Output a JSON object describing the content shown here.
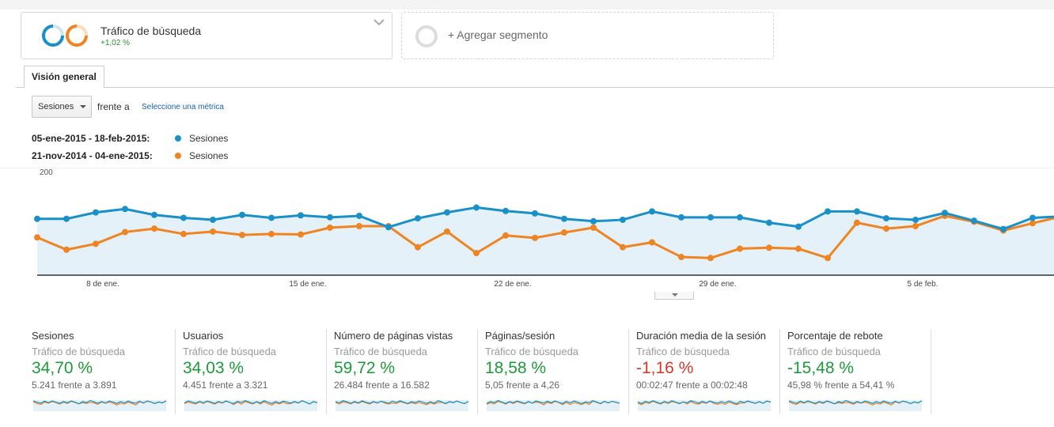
{
  "segments": {
    "active": {
      "title": "Tráfico de búsqueda",
      "delta": "+1,02 %",
      "ring_colors": [
        "#1a90c8",
        "#ef8422"
      ]
    },
    "add_label": "+ Agregar segmento"
  },
  "tabs": [
    {
      "label": "Visión general",
      "selected": true
    }
  ],
  "metric_picker": {
    "selected": "Sesiones",
    "versus_label": "frente a",
    "select_metric_link": "Seleccione una métrica"
  },
  "legend": [
    {
      "range": "05-ene-2015 - 18-feb-2015:",
      "series": "Sesiones",
      "color": "#1a90c8"
    },
    {
      "range": "21-nov-2014 - 04-ene-2015:",
      "series": "Sesiones",
      "color": "#ef8422"
    }
  ],
  "chart_data": {
    "type": "line",
    "y_ticks": [
      "200",
      "100"
    ],
    "ylim": [
      0,
      200
    ],
    "x_tick_labels": [
      "8 de ene.",
      "15 de ene.",
      "22 de ene.",
      "29 de ene.",
      "5 de feb."
    ],
    "series": [
      {
        "name": "Sesiones",
        "range": "05-ene-2015 - 18-feb-2015",
        "color": "#1a90c8",
        "values": [
          115,
          115,
          128,
          135,
          123,
          117,
          113,
          123,
          117,
          122,
          118,
          121,
          98,
          116,
          128,
          138,
          131,
          126,
          115,
          110,
          113,
          130,
          118,
          118,
          118,
          107,
          99,
          130,
          130,
          116,
          113,
          127,
          111,
          94,
          117,
          120
        ]
      },
      {
        "name": "Sesiones",
        "range": "21-nov-2014 - 04-ene-2015",
        "color": "#ef8422",
        "values": [
          77,
          52,
          64,
          88,
          95,
          84,
          89,
          82,
          84,
          83,
          97,
          100,
          100,
          57,
          89,
          45,
          81,
          76,
          87,
          97,
          57,
          67,
          37,
          35,
          54,
          56,
          54,
          35,
          107,
          95,
          100,
          121,
          109,
          91,
          106,
          120
        ]
      }
    ],
    "grid": true
  },
  "summary_cards": [
    {
      "name": "Sesiones",
      "segment": "Tráfico de búsqueda",
      "pct": "34,70 %",
      "trend": "positive",
      "compare": "5.241 frente a 3.891"
    },
    {
      "name": "Usuarios",
      "segment": "Tráfico de búsqueda",
      "pct": "34,03 %",
      "trend": "positive",
      "compare": "4.451 frente a 3.321"
    },
    {
      "name": "Número de páginas vistas",
      "segment": "Tráfico de búsqueda",
      "pct": "59,72 %",
      "trend": "positive",
      "compare": "26.484 frente a 16.582"
    },
    {
      "name": "Páginas/sesión",
      "segment": "Tráfico de búsqueda",
      "pct": "18,58 %",
      "trend": "positive",
      "compare": "5,05 frente a 4,26"
    },
    {
      "name": "Duración media de la sesión",
      "segment": "Tráfico de búsqueda",
      "pct": "-1,16 %",
      "trend": "negative",
      "compare": "00:02:47 frente a 00:02:48"
    },
    {
      "name": "Porcentaje de rebote",
      "segment": "Tráfico de búsqueda",
      "pct": "-15,48 %",
      "trend": "positive",
      "compare": "45,98 % frente a 54,41 %"
    }
  ]
}
